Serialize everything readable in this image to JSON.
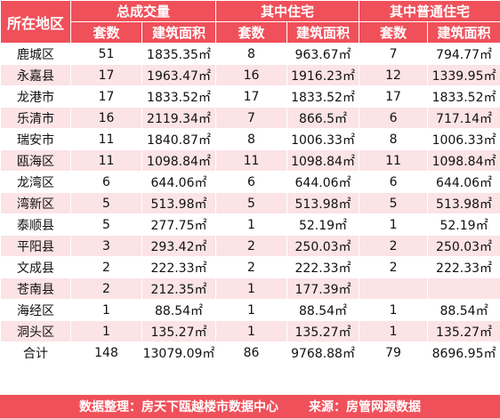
{
  "headers": {
    "region": "所在地区",
    "group_total": "总成交量",
    "group_residential": "其中住宅",
    "group_ordinary": "其中普通住宅",
    "units": "套数",
    "area": "建筑面积"
  },
  "rows": [
    {
      "region": "鹿城区",
      "t_units": "51",
      "t_area": "1835.35㎡",
      "r_units": "8",
      "r_area": "963.67㎡",
      "o_units": "7",
      "o_area": "794.77㎡"
    },
    {
      "region": "永嘉县",
      "t_units": "17",
      "t_area": "1963.47㎡",
      "r_units": "16",
      "r_area": "1916.23㎡",
      "o_units": "12",
      "o_area": "1339.95㎡"
    },
    {
      "region": "龙港市",
      "t_units": "17",
      "t_area": "1833.52㎡",
      "r_units": "17",
      "r_area": "1833.52㎡",
      "o_units": "17",
      "o_area": "1833.52㎡"
    },
    {
      "region": "乐清市",
      "t_units": "16",
      "t_area": "2119.34㎡",
      "r_units": "7",
      "r_area": "866.5㎡",
      "o_units": "6",
      "o_area": "717.14㎡"
    },
    {
      "region": "瑞安市",
      "t_units": "11",
      "t_area": "1840.87㎡",
      "r_units": "8",
      "r_area": "1006.33㎡",
      "o_units": "8",
      "o_area": "1006.33㎡"
    },
    {
      "region": "瓯海区",
      "t_units": "11",
      "t_area": "1098.84㎡",
      "r_units": "11",
      "r_area": "1098.84㎡",
      "o_units": "11",
      "o_area": "1098.84㎡"
    },
    {
      "region": "龙湾区",
      "t_units": "6",
      "t_area": "644.06㎡",
      "r_units": "6",
      "r_area": "644.06㎡",
      "o_units": "6",
      "o_area": "644.06㎡"
    },
    {
      "region": "湾新区",
      "t_units": "5",
      "t_area": "513.98㎡",
      "r_units": "5",
      "r_area": "513.98㎡",
      "o_units": "5",
      "o_area": "513.98㎡"
    },
    {
      "region": "泰顺县",
      "t_units": "5",
      "t_area": "277.75㎡",
      "r_units": "1",
      "r_area": "52.19㎡",
      "o_units": "1",
      "o_area": "52.19㎡"
    },
    {
      "region": "平阳县",
      "t_units": "3",
      "t_area": "293.42㎡",
      "r_units": "2",
      "r_area": "250.03㎡",
      "o_units": "2",
      "o_area": "250.03㎡"
    },
    {
      "region": "文成县",
      "t_units": "2",
      "t_area": "222.33㎡",
      "r_units": "2",
      "r_area": "222.33㎡",
      "o_units": "2",
      "o_area": "222.33㎡"
    },
    {
      "region": "苍南县",
      "t_units": "2",
      "t_area": "212.35㎡",
      "r_units": "1",
      "r_area": "177.39㎡",
      "o_units": "",
      "o_area": ""
    },
    {
      "region": "海经区",
      "t_units": "1",
      "t_area": "88.54㎡",
      "r_units": "1",
      "r_area": "88.54㎡",
      "o_units": "1",
      "o_area": "88.54㎡"
    },
    {
      "region": "洞头区",
      "t_units": "1",
      "t_area": "135.27㎡",
      "r_units": "1",
      "r_area": "135.27㎡",
      "o_units": "1",
      "o_area": "135.27㎡"
    }
  ],
  "total": {
    "region": "合计",
    "t_units": "148",
    "t_area": "13079.09㎡",
    "r_units": "86",
    "r_area": "9768.88㎡",
    "o_units": "79",
    "o_area": "8696.95㎡"
  },
  "footer": {
    "compiled_by": "数据整理：房天下瓯越楼市数据中心",
    "source": "来源：房管网源数据"
  },
  "colors": {
    "header_bg": "#f0505a",
    "stripe_bg": "#fbe3e6"
  }
}
